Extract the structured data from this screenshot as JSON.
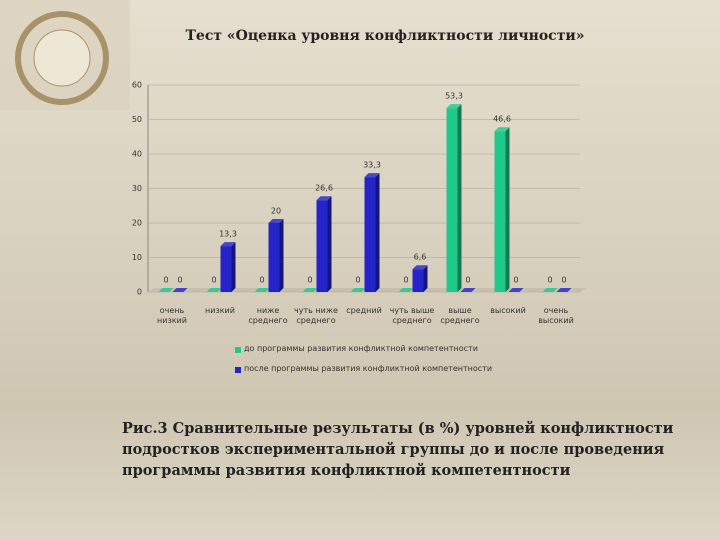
{
  "chart_data": {
    "type": "bar",
    "title": "Тест «Оценка уровня конфликтности личности»",
    "caption": "Рис.3 Сравнительные результаты (в %) уровней конфликтности подростков экспериментальной группы до и после проведения программы развития конфликтной компетентности",
    "categories": [
      "очень низкий",
      "низкий",
      "ниже среднего",
      "чуть ниже среднего",
      "средний",
      "чуть выше среднего",
      "выше среднего",
      "высокий",
      "очень высокий"
    ],
    "series": [
      {
        "name": "до программы развития конфликтной компетентности",
        "color": "#1ec98a",
        "values": [
          0,
          0,
          0,
          0,
          0,
          0,
          53.3,
          46.6,
          0
        ],
        "value_labels": [
          "0",
          "0",
          "0",
          "0",
          "0",
          "0",
          "53,3",
          "46,6",
          "0"
        ]
      },
      {
        "name": "после программы развития конфликтной компетентности",
        "color": "#2424c8",
        "values": [
          0,
          13.3,
          20,
          26.6,
          33.3,
          6.6,
          0,
          0,
          0
        ],
        "value_labels": [
          "0",
          "13,3",
          "20",
          "26,6",
          "33,3",
          "6,6",
          "0",
          "0",
          "0"
        ]
      }
    ],
    "ylim": [
      0,
      60
    ],
    "yticks": [
      0,
      10,
      20,
      30,
      40,
      50,
      60
    ],
    "grid": true
  }
}
